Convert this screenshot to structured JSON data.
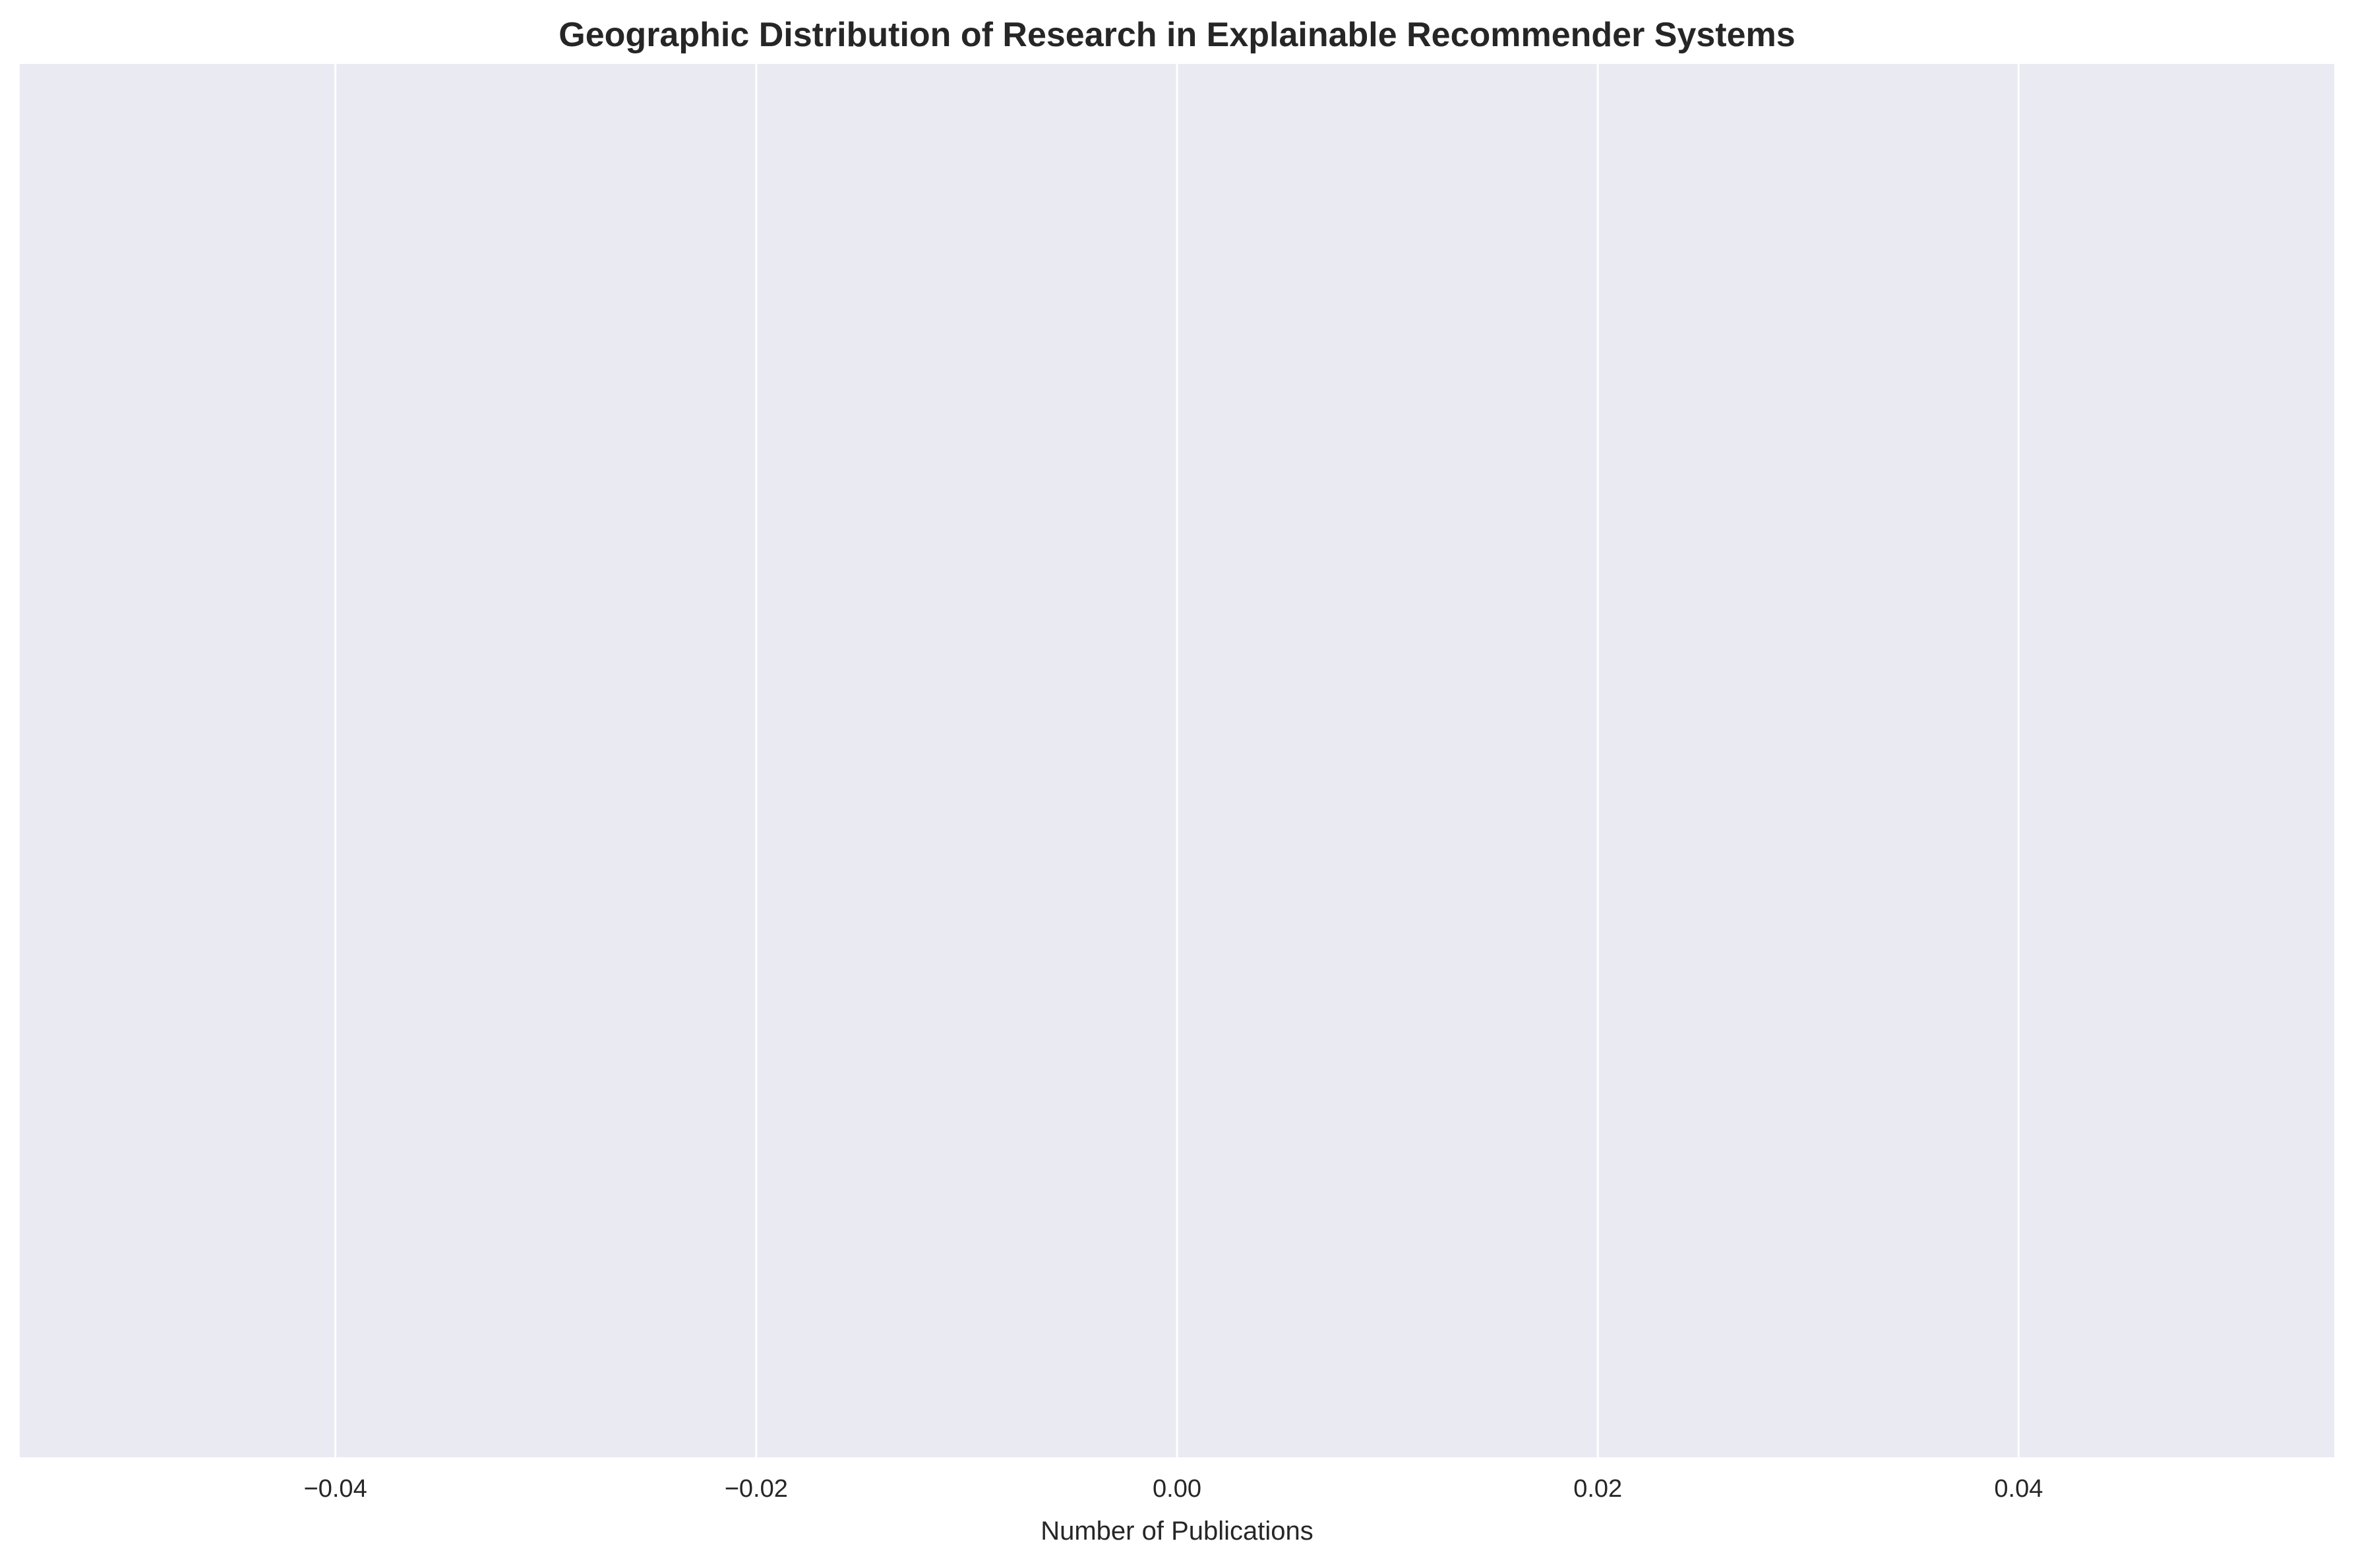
{
  "chart_data": {
    "type": "bar",
    "orientation": "horizontal",
    "title": "Geographic Distribution of Research in Explainable Recommender Systems",
    "xlabel": "Number of Publications",
    "ylabel": "",
    "categories": [],
    "values": [],
    "xlim": [
      -0.055,
      0.055
    ],
    "xticks": [
      -0.04,
      -0.02,
      0.0,
      0.02,
      0.04
    ],
    "xtick_labels": [
      "−0.04",
      "−0.02",
      "0.00",
      "0.02",
      "0.04"
    ],
    "grid": true,
    "legend": "none"
  },
  "colors": {
    "plot_background": "#EAEAF2",
    "grid": "#FFFFFF",
    "text": "#262626"
  }
}
